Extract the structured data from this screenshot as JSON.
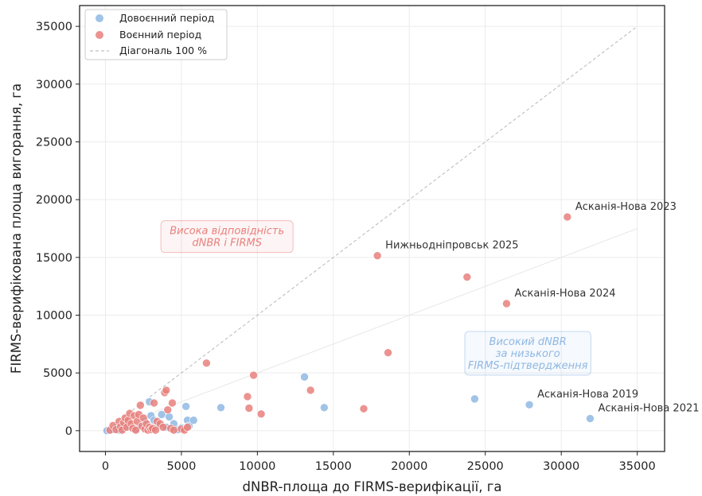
{
  "chart_data": {
    "type": "scatter",
    "xlabel": "dNBR-площа до FIRMS-верифікації, га",
    "ylabel": "FIRMS-верифікована площа вигорання, га",
    "xlim": [
      -1700,
      36800
    ],
    "ylim": [
      -1800,
      36800
    ],
    "xticks": [
      0,
      5000,
      10000,
      15000,
      20000,
      25000,
      30000,
      35000
    ],
    "yticks": [
      0,
      5000,
      10000,
      15000,
      20000,
      25000,
      30000,
      35000
    ],
    "grid": true,
    "legend_position": "top-left",
    "series": [
      {
        "name": "Довоєнний період",
        "color": "#8fb8e3",
        "points": [
          [
            100,
            0
          ],
          [
            300,
            50
          ],
          [
            500,
            100
          ],
          [
            700,
            300
          ],
          [
            900,
            50
          ],
          [
            1100,
            200
          ],
          [
            1300,
            600
          ],
          [
            1500,
            400
          ],
          [
            2000,
            150
          ],
          [
            2300,
            400
          ],
          [
            2600,
            800
          ],
          [
            2900,
            2500
          ],
          [
            3000,
            1300
          ],
          [
            3200,
            900
          ],
          [
            3500,
            500
          ],
          [
            3700,
            1400
          ],
          [
            4000,
            300
          ],
          [
            4200,
            1200
          ],
          [
            4500,
            600
          ],
          [
            4800,
            100
          ],
          [
            5000,
            250
          ],
          [
            5300,
            2100
          ],
          [
            5400,
            900
          ],
          [
            5500,
            400
          ],
          [
            5800,
            900
          ],
          [
            7600,
            2000
          ],
          [
            13100,
            4650
          ],
          [
            14400,
            2000
          ],
          [
            24300,
            2750
          ],
          [
            27900,
            2250
          ],
          [
            31900,
            1050
          ]
        ]
      },
      {
        "name": "Воєнний період",
        "color": "#e8807d",
        "points": [
          [
            300,
            50
          ],
          [
            500,
            450
          ],
          [
            700,
            100
          ],
          [
            900,
            800
          ],
          [
            1000,
            350
          ],
          [
            1100,
            50
          ],
          [
            1200,
            700
          ],
          [
            1300,
            1100
          ],
          [
            1400,
            300
          ],
          [
            1500,
            900
          ],
          [
            1600,
            1500
          ],
          [
            1700,
            600
          ],
          [
            1800,
            200
          ],
          [
            1900,
            1300
          ],
          [
            2000,
            50
          ],
          [
            2100,
            800
          ],
          [
            2200,
            1400
          ],
          [
            2300,
            2200
          ],
          [
            2400,
            400
          ],
          [
            2500,
            1100
          ],
          [
            2600,
            150
          ],
          [
            2700,
            600
          ],
          [
            2800,
            50
          ],
          [
            2900,
            300
          ],
          [
            3000,
            100
          ],
          [
            3100,
            200
          ],
          [
            3200,
            2400
          ],
          [
            3300,
            50
          ],
          [
            3400,
            800
          ],
          [
            3600,
            600
          ],
          [
            3800,
            300
          ],
          [
            3900,
            3300
          ],
          [
            4000,
            3500
          ],
          [
            4100,
            1800
          ],
          [
            4300,
            200
          ],
          [
            4400,
            2400
          ],
          [
            4500,
            50
          ],
          [
            5000,
            150
          ],
          [
            5200,
            50
          ],
          [
            5400,
            300
          ],
          [
            6650,
            5850
          ],
          [
            9350,
            2950
          ],
          [
            9450,
            1950
          ],
          [
            9750,
            4800
          ],
          [
            10250,
            1450
          ],
          [
            13500,
            3500
          ],
          [
            17000,
            1900
          ],
          [
            17900,
            15150
          ],
          [
            18600,
            6750
          ],
          [
            23800,
            13300
          ],
          [
            26400,
            11000
          ],
          [
            30400,
            18500
          ]
        ]
      }
    ],
    "diagonal": {
      "name": "Діагональ 100 %",
      "from": [
        0,
        0
      ],
      "to": [
        35000,
        35000
      ]
    },
    "half_line": {
      "from": [
        0,
        0
      ],
      "to": [
        35000,
        17500
      ]
    },
    "annotations": [
      {
        "text": "Асканія-Нова 2023",
        "x": 30400,
        "y": 18500
      },
      {
        "text": "Нижньодніпровськ 2025",
        "x": 17900,
        "y": 15150
      },
      {
        "text": "Асканія-Нова 2024",
        "x": 26400,
        "y": 11000
      },
      {
        "text": "Асканія-Нова 2019",
        "x": 27900,
        "y": 2250
      },
      {
        "text": "Асканія-Нова 2021",
        "x": 31900,
        "y": 1050
      }
    ],
    "boxes": [
      {
        "lines": [
          "Висока відповідність",
          "dNBR і FIRMS"
        ],
        "color": "#e8807d",
        "x": 8000,
        "y": 16800
      },
      {
        "lines": [
          "Високий dNBR",
          "за низького",
          "FIRMS-підтвердження"
        ],
        "color": "#8fb8e3",
        "x": 27800,
        "y": 6700
      }
    ]
  }
}
